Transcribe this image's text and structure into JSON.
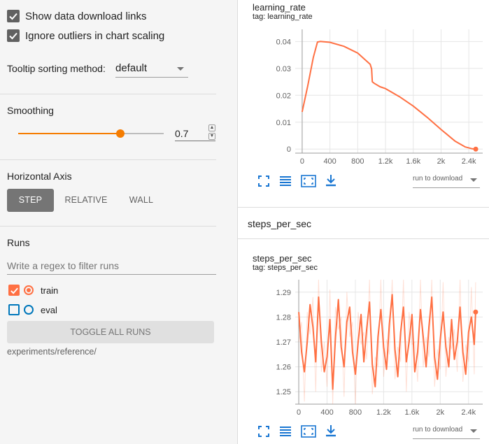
{
  "sidebar": {
    "show_download_links": {
      "label": "Show data download links",
      "checked": true
    },
    "ignore_outliers": {
      "label": "Ignore outliers in chart scaling",
      "checked": true
    },
    "tooltip": {
      "label": "Tooltip sorting method:",
      "value": "default"
    },
    "smoothing": {
      "title": "Smoothing",
      "value": "0.7",
      "level": 0.7
    },
    "horizontal_axis": {
      "title": "Horizontal Axis",
      "options": [
        "STEP",
        "RELATIVE",
        "WALL"
      ],
      "selected": "STEP"
    },
    "runs": {
      "title": "Runs",
      "filter_placeholder": "Write a regex to filter runs",
      "items": [
        {
          "name": "train",
          "checked": true,
          "color": "#ff7043"
        },
        {
          "name": "eval",
          "checked": false,
          "color": "#0077bb"
        }
      ],
      "toggle_label": "TOGGLE ALL RUNS",
      "directory": "experiments/reference/"
    }
  },
  "colors": {
    "accent": "#f57c00",
    "train": "#ff7043",
    "icon_blue": "#1976d2"
  },
  "main": {
    "lr_card": {
      "title": "learning_rate",
      "tag": "tag: learning_rate",
      "run_select": "run to download"
    },
    "group_header": "steps_per_sec",
    "sps_card": {
      "title": "steps_per_sec",
      "tag": "tag: steps_per_sec",
      "run_select": "run to download"
    },
    "toolbar_icons": [
      "fullscreen-icon",
      "data-table-icon",
      "fit-domain-icon",
      "download-icon"
    ]
  },
  "chart_data": [
    {
      "type": "line",
      "title": "learning_rate",
      "xlim": [
        -100,
        2600
      ],
      "ylim": [
        -0.0015,
        0.0445
      ],
      "xticks": [
        0,
        400,
        800,
        1200,
        1600,
        2000,
        2400
      ],
      "xtick_labels": [
        "0",
        "400",
        "800",
        "1.2k",
        "1.6k",
        "2k",
        "2.4k"
      ],
      "yticks": [
        0,
        0.01,
        0.02,
        0.03,
        0.04
      ],
      "ytick_labels": [
        "0",
        "0.01",
        "0.02",
        "0.03",
        "0.04"
      ],
      "series": [
        {
          "name": "train",
          "color": "#ff7043",
          "x": [
            0,
            80,
            160,
            220,
            260,
            400,
            600,
            800,
            980,
            1000,
            1010,
            1040,
            1120,
            1200,
            1400,
            1600,
            1800,
            2000,
            2200,
            2350,
            2450,
            2500
          ],
          "y": [
            0.0138,
            0.0235,
            0.034,
            0.0398,
            0.04,
            0.0397,
            0.0382,
            0.0357,
            0.0315,
            0.0298,
            0.025,
            0.0244,
            0.0232,
            0.0225,
            0.0195,
            0.016,
            0.0118,
            0.0073,
            0.003,
            0.0008,
            0.0001,
            0
          ]
        }
      ]
    },
    {
      "type": "line",
      "title": "steps_per_sec",
      "xlim": [
        -50,
        2600
      ],
      "ylim": [
        1.245,
        1.295
      ],
      "xticks": [
        0,
        400,
        800,
        1200,
        1600,
        2000,
        2400
      ],
      "xtick_labels": [
        "0",
        "400",
        "800",
        "1.2k",
        "1.6k",
        "2k",
        "2.4k"
      ],
      "yticks": [
        1.25,
        1.26,
        1.27,
        1.28,
        1.29
      ],
      "ytick_labels": [
        "1.25",
        "1.26",
        "1.27",
        "1.28",
        "1.29"
      ],
      "series": [
        {
          "name": "train",
          "color": "#ff7043",
          "x": [
            0,
            40,
            80,
            120,
            160,
            200,
            240,
            280,
            320,
            360,
            400,
            440,
            480,
            520,
            560,
            600,
            640,
            680,
            720,
            760,
            800,
            840,
            880,
            920,
            960,
            1000,
            1040,
            1080,
            1120,
            1160,
            1200,
            1240,
            1280,
            1320,
            1360,
            1400,
            1440,
            1480,
            1520,
            1560,
            1600,
            1640,
            1680,
            1720,
            1760,
            1800,
            1840,
            1880,
            1920,
            1960,
            2000,
            2040,
            2080,
            2120,
            2160,
            2200,
            2240,
            2280,
            2320,
            2360,
            2400,
            2440,
            2480,
            2500
          ],
          "y": [
            1.282,
            1.266,
            1.258,
            1.27,
            1.285,
            1.276,
            1.262,
            1.288,
            1.27,
            1.258,
            1.264,
            1.279,
            1.251,
            1.272,
            1.287,
            1.268,
            1.26,
            1.278,
            1.284,
            1.266,
            1.257,
            1.27,
            1.281,
            1.262,
            1.275,
            1.286,
            1.261,
            1.252,
            1.272,
            1.283,
            1.268,
            1.259,
            1.277,
            1.289,
            1.267,
            1.256,
            1.274,
            1.284,
            1.262,
            1.27,
            1.281,
            1.258,
            1.266,
            1.283,
            1.272,
            1.26,
            1.276,
            1.288,
            1.264,
            1.255,
            1.271,
            1.282,
            1.268,
            1.26,
            1.279,
            1.263,
            1.27,
            1.284,
            1.266,
            1.257,
            1.274,
            1.28,
            1.269,
            1.282
          ]
        }
      ]
    }
  ]
}
